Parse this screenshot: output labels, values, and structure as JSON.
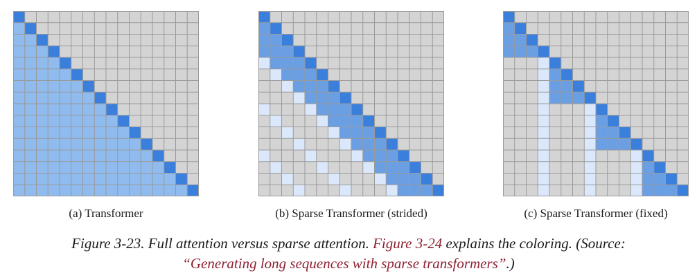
{
  "grid_size": 16,
  "colors": {
    "empty": "#d4d4d4",
    "gridline": "#9a9a9a",
    "diagonal": "#3a7fdc",
    "attended": "#8fbbef",
    "sparse_band": "#6a9fe4",
    "light": "#dbe8fb"
  },
  "panels": [
    {
      "id": "transformer",
      "label": "(a) Transformer",
      "pattern": "full",
      "stride": 4
    },
    {
      "id": "strided",
      "label": "(b) Sparse Transformer (strided)",
      "pattern": "strided",
      "stride": 4
    },
    {
      "id": "fixed",
      "label": "(c) Sparse Transformer (fixed)",
      "pattern": "fixed",
      "stride": 4
    }
  ],
  "caption": {
    "part1": "Figure 3-23. Full attention versus sparse attention. ",
    "link1": "Figure 3-24",
    "part2": " explains the coloring. (Source: ",
    "link2": "“Generating long sequences with sparse transformers”",
    "part3": ".)"
  }
}
